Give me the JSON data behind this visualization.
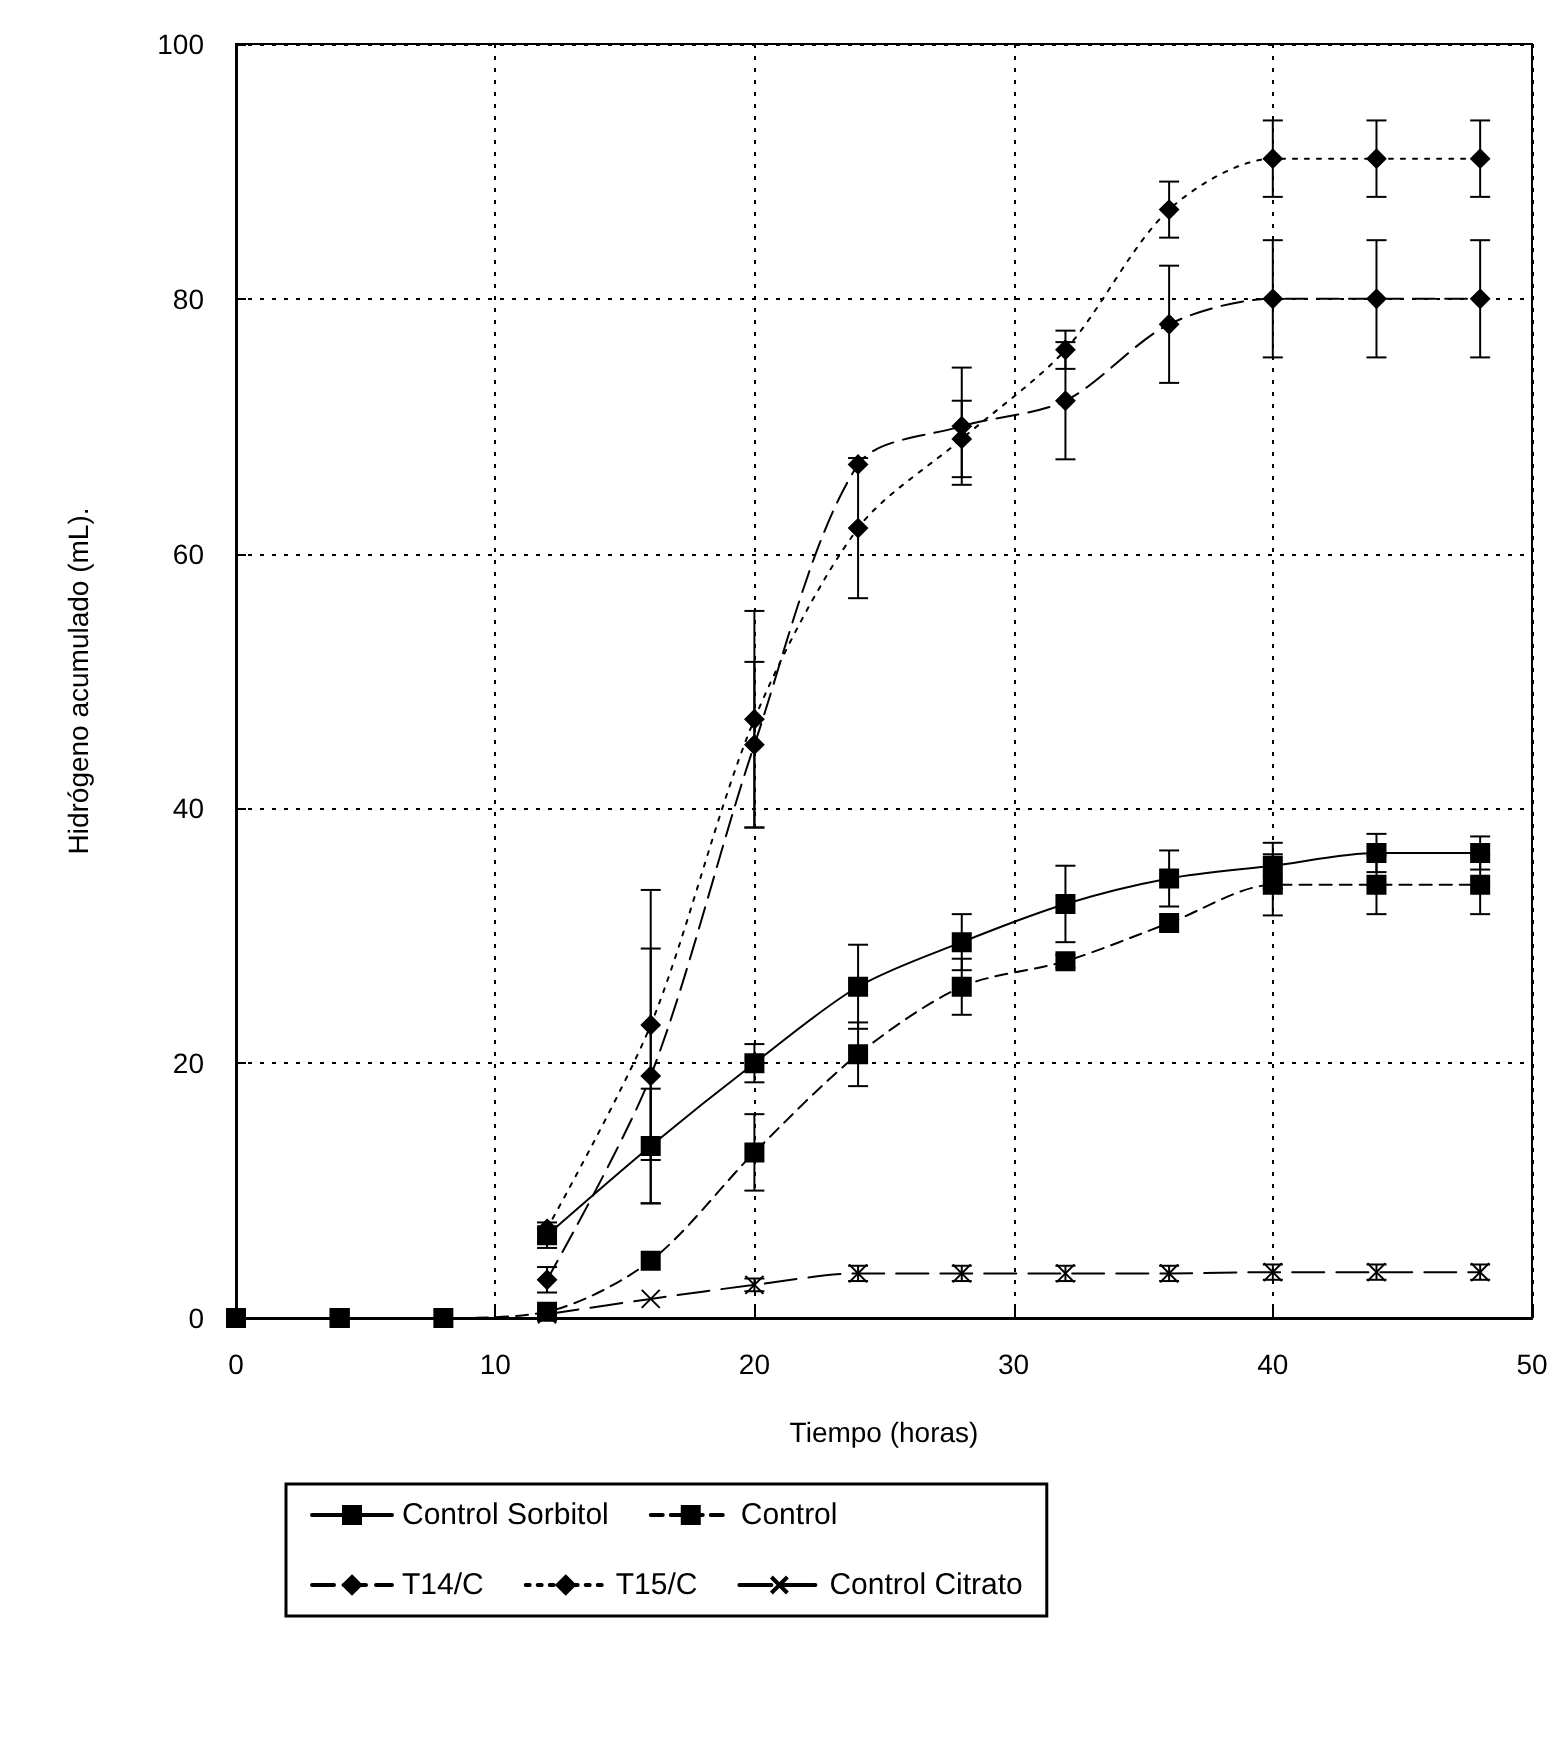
{
  "chart_data": {
    "type": "line",
    "xlabel": "Tiempo (horas)",
    "ylabel": "Hidrógeno acumulado (mL).",
    "x": [
      0,
      4,
      8,
      12,
      16,
      20,
      24,
      28,
      32,
      36,
      40,
      44,
      48
    ],
    "series": [
      {
        "name": "Control Sorbitol",
        "color": "#000000",
        "marker": "square",
        "line_style": "solid",
        "values": [
          0,
          0,
          null,
          6.5,
          13.5,
          20,
          26,
          29.5,
          32.5,
          34.5,
          35.5,
          36.5,
          36.5
        ],
        "errors": [
          null,
          null,
          null,
          1,
          4.5,
          1.5,
          3.3,
          2.2,
          3,
          2.2,
          1.8,
          1.5,
          1.3
        ]
      },
      {
        "name": "Control",
        "color": "#000000",
        "marker": "square",
        "line_style": "dashed",
        "values": [
          0,
          0,
          0,
          0.5,
          4.5,
          13,
          20.7,
          26,
          28,
          31,
          34,
          34,
          34
        ],
        "errors": [
          null,
          null,
          null,
          null,
          null,
          3,
          2.5,
          2.2,
          0.5,
          null,
          2.4,
          2.3,
          2.3
        ]
      },
      {
        "name": "T14/C",
        "color": "#000000",
        "marker": "diamond",
        "line_style": "dashed",
        "values": [
          null,
          null,
          null,
          3,
          19,
          45,
          67,
          70,
          72,
          78,
          80,
          80,
          80
        ],
        "errors": [
          null,
          null,
          null,
          1,
          10,
          6.5,
          null,
          4.6,
          4.6,
          4.6,
          4.6,
          4.6,
          4.6
        ]
      },
      {
        "name": "T15/C",
        "color": "#000000",
        "marker": "diamond",
        "line_style": "dotted",
        "values": [
          null,
          null,
          null,
          7,
          23,
          47,
          62,
          69,
          76,
          87,
          91,
          91,
          91
        ],
        "errors": [
          null,
          null,
          null,
          null,
          10.6,
          8.5,
          5.5,
          3,
          1.5,
          2.2,
          3,
          3,
          3
        ]
      },
      {
        "name": "Control Citrato",
        "color": "#000000",
        "marker": "cross",
        "line_style": "dashed",
        "values": [
          null,
          null,
          null,
          0.3,
          1.5,
          2.6,
          3.5,
          3.5,
          3.5,
          3.5,
          3.6,
          3.6,
          3.6
        ],
        "errors": [
          null,
          null,
          null,
          null,
          null,
          0.5,
          0.6,
          0.6,
          0.6,
          0.6,
          0.6,
          0.6,
          0.6
        ]
      }
    ],
    "xlim": [
      0,
      50
    ],
    "xticks": [
      0,
      10,
      20,
      30,
      40,
      50
    ],
    "ylim": [
      0,
      100
    ],
    "yticks": [
      0,
      20,
      40,
      60,
      80,
      100
    ],
    "grid": true,
    "legend": "bottom"
  }
}
